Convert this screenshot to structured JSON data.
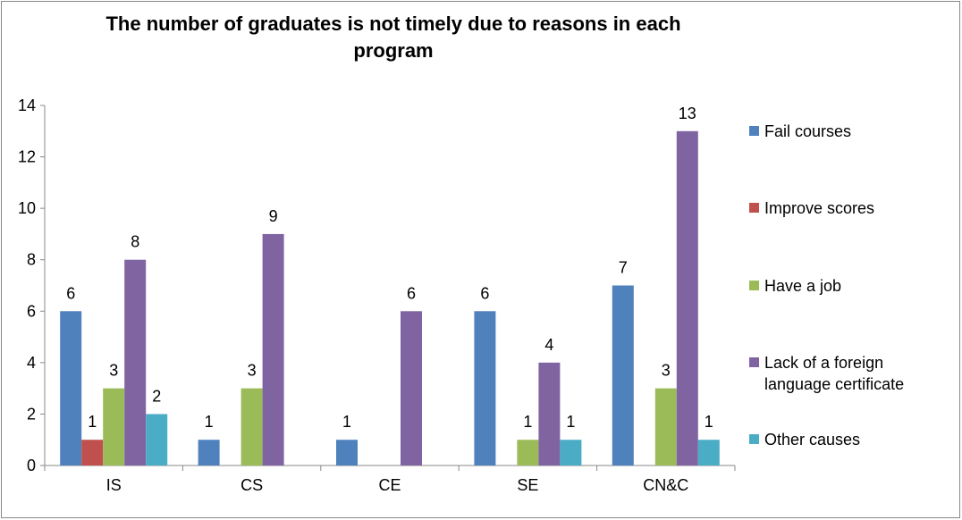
{
  "chart_data": {
    "type": "bar",
    "title": "The number of graduates is not timely due to reasons in each program",
    "categories": [
      "IS",
      "CS",
      "CE",
      "SE",
      "CN&C"
    ],
    "series": [
      {
        "name": "Fail courses",
        "color": "#4f81bd",
        "values": [
          6,
          1,
          1,
          6,
          7
        ]
      },
      {
        "name": "Improve scores",
        "color": "#c0504d",
        "values": [
          1,
          null,
          null,
          null,
          null
        ]
      },
      {
        "name": "Have a job",
        "color": "#9bbb59",
        "values": [
          3,
          3,
          null,
          1,
          3
        ]
      },
      {
        "name": "Lack of a foreign language certificate",
        "color": "#8064a2",
        "values": [
          8,
          9,
          6,
          4,
          13
        ]
      },
      {
        "name": "Other causes",
        "color": "#4bacc6",
        "values": [
          2,
          null,
          null,
          1,
          1
        ]
      }
    ],
    "ylim": [
      0,
      14
    ],
    "yticks": [
      0,
      2,
      4,
      6,
      8,
      10,
      12,
      14
    ],
    "grid": false,
    "legend": "right"
  }
}
